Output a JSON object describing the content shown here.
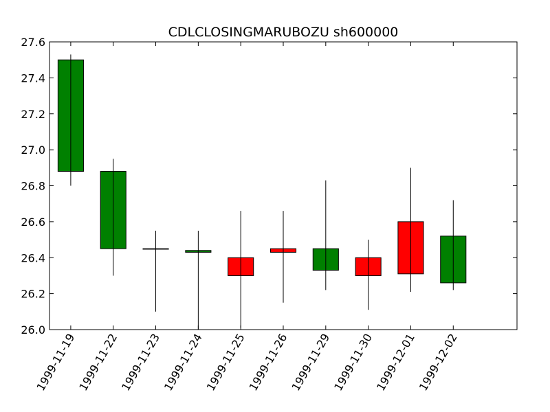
{
  "chart_data": {
    "type": "candlestick",
    "title": "CDLCLOSINGMARUBOZU sh600000",
    "xlabel": "",
    "ylabel": "",
    "ylim": [
      26.0,
      27.6
    ],
    "yticks": [
      "26.0",
      "26.2",
      "26.4",
      "26.6",
      "26.8",
      "27.0",
      "27.2",
      "27.4",
      "27.6"
    ],
    "grid": false,
    "up_color": "#008000",
    "down_color": "#ff0000",
    "categories": [
      "1999-11-19",
      "1999-11-22",
      "1999-11-23",
      "1999-11-24",
      "1999-11-25",
      "1999-11-26",
      "1999-11-29",
      "1999-11-30",
      "1999-12-01",
      "1999-12-02"
    ],
    "candles": [
      {
        "date": "1999-11-19",
        "open": 26.88,
        "high": 27.53,
        "low": 26.8,
        "close": 27.5
      },
      {
        "date": "1999-11-22",
        "open": 26.45,
        "high": 26.95,
        "low": 26.3,
        "close": 26.88
      },
      {
        "date": "1999-11-23",
        "open": 26.45,
        "high": 26.55,
        "low": 26.1,
        "close": 26.45
      },
      {
        "date": "1999-11-24",
        "open": 26.43,
        "high": 26.55,
        "low": 26.0,
        "close": 26.44
      },
      {
        "date": "1999-11-25",
        "open": 26.4,
        "high": 26.66,
        "low": 26.01,
        "close": 26.3
      },
      {
        "date": "1999-11-26",
        "open": 26.45,
        "high": 26.66,
        "low": 26.15,
        "close": 26.43
      },
      {
        "date": "1999-11-29",
        "open": 26.33,
        "high": 26.83,
        "low": 26.22,
        "close": 26.45
      },
      {
        "date": "1999-11-30",
        "open": 26.4,
        "high": 26.5,
        "low": 26.11,
        "close": 26.3
      },
      {
        "date": "1999-12-01",
        "open": 26.6,
        "high": 26.9,
        "low": 26.21,
        "close": 26.31
      },
      {
        "date": "1999-12-02",
        "open": 26.26,
        "high": 26.72,
        "low": 26.22,
        "close": 26.52
      }
    ]
  }
}
